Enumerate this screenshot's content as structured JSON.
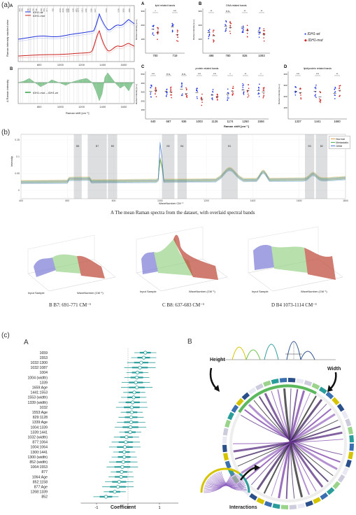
{
  "panel_labels": {
    "a": "(a)",
    "b": "(b)",
    "c": "(c)"
  },
  "a": {
    "spectra": {
      "letter": "A",
      "ylabel": "Raman intensity stacked view",
      "legend": [
        "IDH1-wt",
        "IDH1-mut"
      ],
      "peak_marks": [
        "621",
        "643",
        "700",
        "719",
        "750",
        "780",
        "826",
        "853",
        "877",
        "935",
        "1003",
        "1032",
        "1066",
        "1085",
        "1126",
        "1157",
        "1174",
        "1212",
        "1250",
        "1300",
        "1337",
        "1441",
        "1556",
        "1605",
        "1660"
      ],
      "xticks": [
        "800",
        "1000",
        "1200",
        "1400",
        "1600"
      ],
      "legend_colors": {
        "wt": "#2233dd",
        "mut": "#cc2222"
      }
    },
    "diff": {
      "letter": "B",
      "ylabel": "Δ Raman intensity",
      "xlabel": "Raman shift [cm⁻¹]",
      "legend": "IDH1-mut – IDH1-wt",
      "color": "#2ea043"
    },
    "boxes": {
      "lipid": {
        "letter": "A",
        "title": "lipid related bands",
        "ylabel": "Raman intensity [a.u.]",
        "cats": [
          "700",
          "719"
        ],
        "sig": [
          "*",
          "***"
        ],
        "yticks": [
          "100",
          "200",
          "300"
        ]
      },
      "dna": {
        "letter": "B",
        "title": "DNA related bands",
        "ylabel": "Raman intensity [a.u.]",
        "cats": [
          "498",
          "780",
          "826",
          "1093"
        ],
        "sig": [
          "**",
          "n.s.",
          "**",
          "**"
        ],
        "yticks": [
          "100",
          "200",
          "300"
        ]
      },
      "protein": {
        "letter": "C",
        "title": "protein related bands",
        "ylabel": "Raman intensity [a.u.]",
        "cats": [
          "640",
          "667",
          "936",
          "1003",
          "1126",
          "1174",
          "1250",
          "1556"
        ],
        "sig": [
          "***",
          "n.s.",
          "n.s.",
          "***",
          "***",
          "*",
          "**",
          "*"
        ],
        "yticks": [
          "100",
          "200",
          "300",
          "400",
          "500"
        ]
      },
      "lipidprot": {
        "letter": "D",
        "title": "lipid/protein related bands",
        "ylabel": "Raman intensity [a.u.]",
        "cats": [
          "1337",
          "1441",
          "1660"
        ],
        "sig": [
          "***",
          "***",
          "**"
        ],
        "yticks": [
          "100",
          "200",
          "300",
          "400"
        ]
      },
      "xlabel": "Raman shift [cm⁻¹]",
      "legend": [
        "IDH1-wt",
        "IDH1-mut"
      ]
    }
  },
  "b": {
    "mean": {
      "ylabel": "Intensity",
      "xlabel": "WaveNumber CM⁻¹",
      "yticks": [
        "0.15",
        "0.1",
        "0.05",
        "0"
      ],
      "xticks": [
        "400",
        "600",
        "800",
        "1000",
        "1200",
        "1400",
        "1600",
        "1800"
      ],
      "bands": [
        "B8",
        "B7",
        "B9",
        "B5",
        "B4",
        "B1",
        "B3",
        "B2"
      ],
      "legend": [
        "Normal",
        "Metastatic",
        "GBM"
      ],
      "legend_colors": [
        "#e0a040",
        "#4caf50",
        "#4a7bd0"
      ],
      "caption": "A  The mean Raman spectra from the dataset, with overlaid spectral bands"
    },
    "three_d": [
      {
        "caption": "B  B7: 691-771 CM⁻¹",
        "axis1": "Input Sample",
        "axis2": "WaveNumber (CM⁻¹)"
      },
      {
        "caption": "C  B8: 637-683 CM⁻¹",
        "axis1": "Input Sample",
        "axis2": "WaveNumber (CM⁻¹)"
      },
      {
        "caption": "D  B4 1073-1114 CM⁻¹",
        "axis1": "Input Sample",
        "axis2": "WaveNumber (CM⁻¹)"
      }
    ]
  },
  "c": {
    "forest": {
      "letter": "A",
      "xlabel": "Coefficient",
      "xticks": [
        "-1",
        "0",
        "1"
      ],
      "color": "#2a9d9a",
      "terms": [
        "1659",
        "1553",
        "1032:1300",
        "1032:1087",
        "1004",
        "1004 (width)",
        "1339",
        "1659:Age",
        "1441:1553",
        "1553 (width)",
        "1339 (width)",
        "1032",
        "1553:Age",
        "829:1128",
        "1339:Age",
        "1004:1339",
        "1339:1441",
        "1032 (width)",
        "877:1064",
        "1004:1064",
        "1300:1441",
        "1300 (width)",
        "852 (width)",
        "1064:1553",
        "877",
        "1064:Age",
        "852:1158",
        "877:Age",
        "1268:1339",
        "852"
      ],
      "coefs": [
        0.55,
        0.5,
        0.42,
        0.38,
        0.3,
        0.28,
        0.25,
        0.28,
        0.2,
        0.18,
        0.15,
        0.12,
        0.12,
        0.1,
        0.1,
        0.08,
        0.07,
        -0.05,
        -0.07,
        -0.1,
        -0.12,
        -0.12,
        -0.15,
        -0.18,
        -0.2,
        -0.22,
        -0.28,
        -0.32,
        -0.42,
        -0.7
      ]
    },
    "chord": {
      "letter": "B",
      "height_label": "Height",
      "width_label": "Width",
      "interactions_label": "Interactions"
    }
  }
}
